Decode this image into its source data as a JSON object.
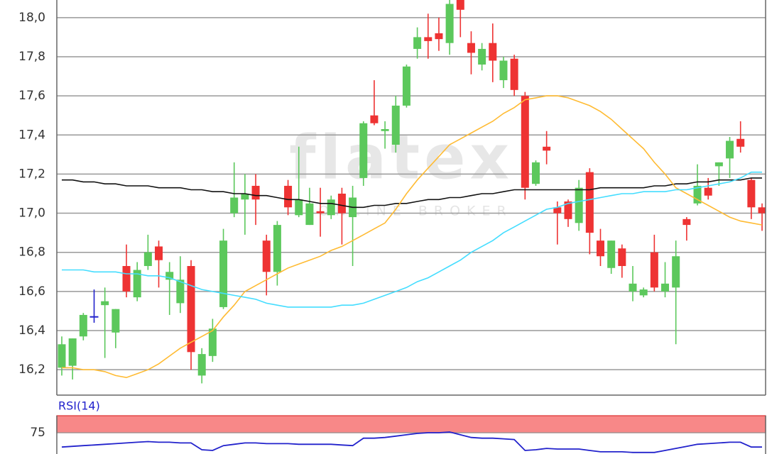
{
  "chart_data": [
    {
      "type": "candlestick",
      "watermark": "flatex",
      "watermark_sub": "ONLINE BROKER",
      "open": [
        16.21,
        16.22,
        16.37,
        16.47,
        16.53,
        16.39,
        16.73,
        16.57,
        16.73,
        16.83,
        16.66,
        16.54,
        16.73,
        16.17,
        16.27,
        16.52,
        17.0,
        17.07,
        17.14,
        16.86,
        16.7,
        17.14,
        16.99,
        16.94,
        17.01,
        16.99,
        17.1,
        16.98,
        17.18,
        17.5,
        17.42,
        17.35,
        17.55,
        17.84,
        17.9,
        17.92,
        17.87,
        18.09,
        17.87,
        17.76,
        17.87,
        17.68,
        17.79,
        17.6,
        17.15,
        17.34,
        17.03,
        17.06,
        16.95,
        17.21,
        16.86,
        16.72,
        16.82,
        16.6,
        16.58,
        16.8,
        16.6,
        16.62,
        16.97,
        17.05,
        17.13,
        17.24,
        17.28,
        17.38,
        17.17,
        17.03
      ],
      "high": [
        16.37,
        16.36,
        16.49,
        16.61,
        16.62,
        16.51,
        16.84,
        16.75,
        16.89,
        16.86,
        16.75,
        16.78,
        16.76,
        16.31,
        16.46,
        16.92,
        17.26,
        17.2,
        17.2,
        16.89,
        16.96,
        17.17,
        17.34,
        17.13,
        17.13,
        17.09,
        17.13,
        17.14,
        17.47,
        17.68,
        17.47,
        17.6,
        17.76,
        17.95,
        18.02,
        18.0,
        18.09,
        18.09,
        17.93,
        17.87,
        17.97,
        17.8,
        17.81,
        17.62,
        17.27,
        17.42,
        17.06,
        17.07,
        17.17,
        17.23,
        16.92,
        16.86,
        16.84,
        16.73,
        16.62,
        16.89,
        16.75,
        16.86,
        16.98,
        17.25,
        17.18,
        17.26,
        17.39,
        17.47,
        17.18,
        17.05
      ],
      "low": [
        16.17,
        16.15,
        16.35,
        16.44,
        16.26,
        16.31,
        16.57,
        16.55,
        16.71,
        16.62,
        16.48,
        16.49,
        16.2,
        16.13,
        16.24,
        16.51,
        16.98,
        16.89,
        16.94,
        16.58,
        16.63,
        16.99,
        16.98,
        16.94,
        16.88,
        16.97,
        16.84,
        16.73,
        17.14,
        17.45,
        17.33,
        17.31,
        17.54,
        17.79,
        17.79,
        17.83,
        17.81,
        17.9,
        17.71,
        17.73,
        17.67,
        17.64,
        17.6,
        17.07,
        17.14,
        17.25,
        16.84,
        16.93,
        16.91,
        16.79,
        16.73,
        16.69,
        16.67,
        16.55,
        16.57,
        16.6,
        16.57,
        16.33,
        16.86,
        17.04,
        17.07,
        17.14,
        17.18,
        17.31,
        16.97,
        16.91
      ],
      "close": [
        16.33,
        16.36,
        16.48,
        16.47,
        16.55,
        16.51,
        16.6,
        16.71,
        16.8,
        16.76,
        16.7,
        16.66,
        16.29,
        16.28,
        16.41,
        16.86,
        17.08,
        17.1,
        17.07,
        16.7,
        16.94,
        17.03,
        17.07,
        17.05,
        17.0,
        17.07,
        17.0,
        17.08,
        17.46,
        17.46,
        17.43,
        17.55,
        17.75,
        17.9,
        17.88,
        17.89,
        18.07,
        18.04,
        17.82,
        17.84,
        17.78,
        17.78,
        17.63,
        17.13,
        17.26,
        17.32,
        17.0,
        16.97,
        17.13,
        16.9,
        16.78,
        16.86,
        16.73,
        16.64,
        16.61,
        16.62,
        16.64,
        16.78,
        16.94,
        17.14,
        17.09,
        17.26,
        17.37,
        17.34,
        17.03,
        17.0
      ],
      "up_color": "#5cc85c",
      "down_color": "#ee3333",
      "doji_color": "#2222cc",
      "overlays": [
        {
          "color": "#111111",
          "values": [
            17.17,
            17.17,
            17.16,
            17.16,
            17.15,
            17.15,
            17.14,
            17.14,
            17.14,
            17.13,
            17.13,
            17.13,
            17.12,
            17.12,
            17.11,
            17.11,
            17.1,
            17.1,
            17.09,
            17.09,
            17.08,
            17.07,
            17.07,
            17.06,
            17.05,
            17.05,
            17.04,
            17.03,
            17.03,
            17.04,
            17.04,
            17.05,
            17.05,
            17.06,
            17.07,
            17.07,
            17.08,
            17.08,
            17.09,
            17.1,
            17.1,
            17.11,
            17.12,
            17.12,
            17.12,
            17.12,
            17.12,
            17.12,
            17.12,
            17.12,
            17.13,
            17.13,
            17.13,
            17.13,
            17.13,
            17.14,
            17.14,
            17.15,
            17.15,
            17.16,
            17.16,
            17.17,
            17.17,
            17.17,
            17.18,
            17.18
          ]
        },
        {
          "color": "#ffbb33",
          "values": [
            16.21,
            16.21,
            16.2,
            16.2,
            16.19,
            16.17,
            16.16,
            16.18,
            16.2,
            16.23,
            16.27,
            16.31,
            16.34,
            16.37,
            16.4,
            16.47,
            16.53,
            16.6,
            16.63,
            16.66,
            16.69,
            16.72,
            16.74,
            16.76,
            16.78,
            16.81,
            16.83,
            16.86,
            16.89,
            16.92,
            16.95,
            17.02,
            17.1,
            17.17,
            17.23,
            17.29,
            17.35,
            17.38,
            17.41,
            17.44,
            17.47,
            17.51,
            17.54,
            17.58,
            17.59,
            17.6,
            17.6,
            17.59,
            17.57,
            17.55,
            17.52,
            17.48,
            17.43,
            17.38,
            17.33,
            17.26,
            17.2,
            17.13,
            17.1,
            17.07,
            17.04,
            17.01,
            16.98,
            16.96,
            16.95,
            16.94
          ]
        },
        {
          "color": "#44ddff",
          "values": [
            16.71,
            16.71,
            16.71,
            16.7,
            16.7,
            16.7,
            16.69,
            16.69,
            16.68,
            16.68,
            16.67,
            16.65,
            16.63,
            16.61,
            16.6,
            16.59,
            16.58,
            16.57,
            16.56,
            16.54,
            16.53,
            16.52,
            16.52,
            16.52,
            16.52,
            16.52,
            16.53,
            16.53,
            16.54,
            16.56,
            16.58,
            16.6,
            16.62,
            16.65,
            16.67,
            16.7,
            16.73,
            16.76,
            16.8,
            16.83,
            16.86,
            16.9,
            16.93,
            16.96,
            16.99,
            17.02,
            17.03,
            17.05,
            17.06,
            17.07,
            17.08,
            17.09,
            17.1,
            17.1,
            17.11,
            17.11,
            17.11,
            17.12,
            17.12,
            17.13,
            17.14,
            17.15,
            17.16,
            17.18,
            17.21,
            17.21
          ]
        }
      ],
      "ylim": [
        16.07,
        18.09
      ],
      "yticks": [
        {
          "value": 16.2,
          "label": "16,2"
        },
        {
          "value": 16.4,
          "label": "16,4"
        },
        {
          "value": 16.6,
          "label": "16,6"
        },
        {
          "value": 16.8,
          "label": "16,8"
        },
        {
          "value": 17.0,
          "label": "17,0"
        },
        {
          "value": 17.2,
          "label": "17,2"
        },
        {
          "value": 17.4,
          "label": "17,4"
        },
        {
          "value": 17.6,
          "label": "17,6"
        },
        {
          "value": 17.8,
          "label": "17,8"
        },
        {
          "value": 18.0,
          "label": "18,0"
        }
      ],
      "grid": true
    },
    {
      "type": "line",
      "title": "RSI(14)",
      "series": [
        {
          "color": "#2222cc",
          "values": [
            54,
            55,
            56,
            57,
            58,
            59,
            60,
            61,
            62,
            61,
            61,
            60,
            60,
            50,
            49,
            56,
            58,
            60,
            60,
            59,
            59,
            59,
            58,
            58,
            58,
            58,
            57,
            56,
            67,
            67,
            68,
            70,
            72,
            74,
            75,
            75,
            76,
            72,
            68,
            67,
            67,
            66,
            65,
            49,
            50,
            52,
            51,
            51,
            51,
            49,
            47,
            47,
            47,
            46,
            46,
            46,
            49,
            52,
            55,
            58,
            59,
            60,
            61,
            61,
            54,
            54
          ]
        }
      ],
      "zone": [
        75,
        100
      ],
      "zone_color": "#f88888",
      "ylim": [
        43.75,
        100
      ],
      "yticks": [
        75
      ],
      "grid": true
    }
  ]
}
